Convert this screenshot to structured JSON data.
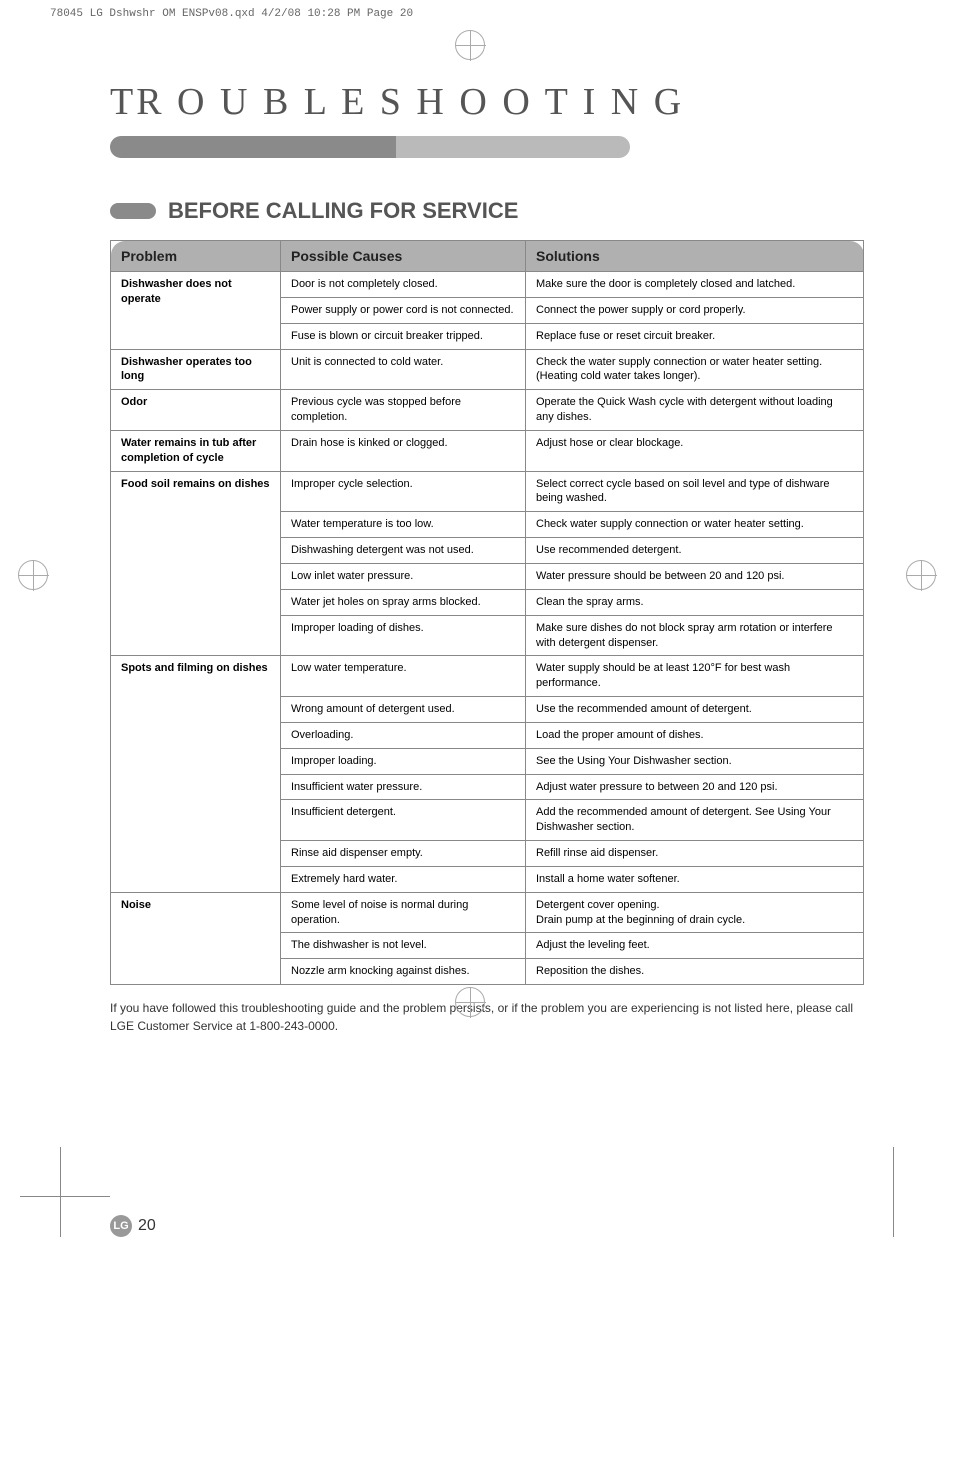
{
  "header_line": "78045 LG Dshwshr OM ENSPv08.qxd  4/2/08  10:28 PM  Page 20",
  "page_title": "TR O U B L E S H O O T I N G",
  "section_heading": "BEFORE CALLING FOR SERVICE",
  "columns": [
    "Problem",
    "Possible Causes",
    "Solutions"
  ],
  "groups": [
    {
      "problem": "Dishwasher does not operate",
      "rows": [
        {
          "cause": "Door is not completely closed.",
          "solution": "Make sure the door is completely closed and latched."
        },
        {
          "cause": "Power supply or power cord is not connected.",
          "solution": "Connect the power supply or cord properly."
        },
        {
          "cause": "Fuse is blown or circuit breaker tripped.",
          "solution": "Replace fuse or reset circuit breaker."
        }
      ]
    },
    {
      "problem": "Dishwasher operates too long",
      "rows": [
        {
          "cause": "Unit is connected to cold water.",
          "solution": "Check the water supply connection or water heater setting. (Heating cold water takes longer)."
        }
      ]
    },
    {
      "problem": "Odor",
      "rows": [
        {
          "cause": "Previous cycle was stopped before completion.",
          "solution": "Operate the Quick Wash cycle with detergent without loading any dishes."
        }
      ]
    },
    {
      "problem": "Water remains in tub after completion of cycle",
      "rows": [
        {
          "cause": "Drain hose is kinked or clogged.",
          "solution": "Adjust hose or clear blockage."
        }
      ]
    },
    {
      "problem": "Food soil remains on dishes",
      "rows": [
        {
          "cause": "Improper cycle selection.",
          "solution": "Select correct cycle based on soil level and type of dishware being washed."
        },
        {
          "cause": "Water temperature is too low.",
          "solution": "Check water supply connection or water heater setting."
        },
        {
          "cause": "Dishwashing detergent was not used.",
          "solution": "Use recommended detergent."
        },
        {
          "cause": "Low inlet water pressure.",
          "solution": "Water pressure should be between 20 and 120 psi."
        },
        {
          "cause": "Water jet holes on spray arms blocked.",
          "solution": "Clean the spray arms."
        },
        {
          "cause": "Improper loading of dishes.",
          "solution": "Make sure dishes do not block spray arm rotation or interfere with detergent dispenser."
        }
      ]
    },
    {
      "problem": "Spots and filming on dishes",
      "rows": [
        {
          "cause": "Low water temperature.",
          "solution": "Water supply should be at least 120°F for best wash performance."
        },
        {
          "cause": "Wrong amount of detergent used.",
          "solution": "Use the recommended amount of detergent."
        },
        {
          "cause": "Overloading.",
          "solution": "Load the proper amount of dishes."
        },
        {
          "cause": "Improper loading.",
          "solution": "See the Using Your Dishwasher section."
        },
        {
          "cause": "Insufficient water pressure.",
          "solution": "Adjust water pressure to between 20 and 120 psi."
        },
        {
          "cause": "Insufficient detergent.",
          "solution": "Add the recommended amount of detergent. See Using Your Dishwasher section."
        },
        {
          "cause": "Rinse aid dispenser empty.",
          "solution": "Refill rinse aid dispenser."
        },
        {
          "cause": "Extremely hard water.",
          "solution": "Install a home water softener."
        }
      ]
    },
    {
      "problem": "Noise",
      "rows": [
        {
          "cause": "Some level of noise is normal during operation.",
          "solution": "Detergent cover opening.\nDrain pump at the beginning of drain cycle."
        },
        {
          "cause": "The dishwasher is not level.",
          "solution": "Adjust the leveling feet."
        },
        {
          "cause": "Nozzle arm knocking against dishes.",
          "solution": "Reposition the dishes."
        }
      ]
    }
  ],
  "note": "If you have followed this troubleshooting guide and the problem persists, or if the problem you are experiencing is not listed here, please call LGE Customer Service at 1-800-243-0000.",
  "lg_badge": "LG",
  "page_number": "20"
}
